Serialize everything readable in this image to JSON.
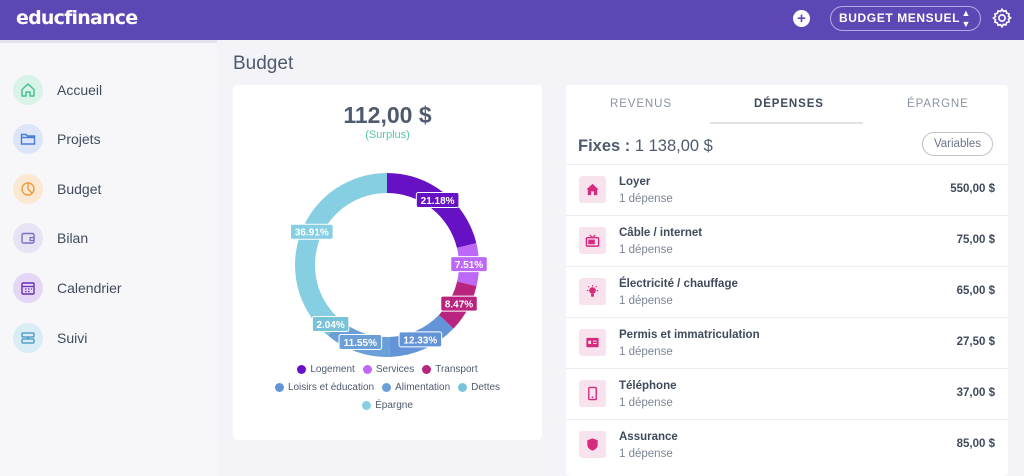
{
  "app": {
    "logo": "educfinance"
  },
  "topbar": {
    "add_label": "+",
    "budget_select": "BUDGET MENSUEL"
  },
  "sidebar": {
    "items": [
      {
        "label": "Accueil",
        "icon": "home-icon"
      },
      {
        "label": "Projets",
        "icon": "folder-icon"
      },
      {
        "label": "Budget",
        "icon": "pie-chart-icon"
      },
      {
        "label": "Bilan",
        "icon": "wallet-icon"
      },
      {
        "label": "Calendrier",
        "icon": "calendar-icon"
      },
      {
        "label": "Suivi",
        "icon": "tracking-icon"
      }
    ]
  },
  "page": {
    "title": "Budget"
  },
  "summary": {
    "amount": "112,00 $",
    "status": "(Surplus)"
  },
  "chart_data": {
    "type": "pie",
    "categories": [
      "Logement",
      "Services",
      "Transport",
      "Loisirs et éducation",
      "Alimentation",
      "Dettes",
      "Épargne"
    ],
    "values": [
      21.18,
      7.51,
      8.47,
      12.33,
      11.55,
      2.04,
      36.91
    ],
    "labels": [
      "21.18%",
      "7.51%",
      "8.47%",
      "12.33%",
      "11.55%",
      "2.04%",
      "36.91%"
    ],
    "colors": [
      "#6612c4",
      "#bd68f6",
      "#b8247e",
      "#6394d7",
      "#6b9fd8",
      "#79c3d9",
      "#86cfe2"
    ],
    "legend": "bottom"
  },
  "tabs": [
    {
      "label": "REVENUS",
      "active": false
    },
    {
      "label": "DÉPENSES",
      "active": true
    },
    {
      "label": "ÉPARGNE",
      "active": false
    }
  ],
  "fixes": {
    "label": "Fixes :",
    "amount": "1 138,00 $"
  },
  "variables_button": "Variables",
  "expenses": [
    {
      "name": "Loyer",
      "count": "1 dépense",
      "amount": "550,00 $",
      "icon": "house-icon"
    },
    {
      "name": "Câble / internet",
      "count": "1 dépense",
      "amount": "75,00 $",
      "icon": "tv-icon"
    },
    {
      "name": "Électricité / chauffage",
      "count": "1 dépense",
      "amount": "65,00 $",
      "icon": "lightbulb-icon"
    },
    {
      "name": "Permis et immatriculation",
      "count": "1 dépense",
      "amount": "27,50 $",
      "icon": "id-card-icon"
    },
    {
      "name": "Téléphone",
      "count": "1 dépense",
      "amount": "37,00 $",
      "icon": "phone-icon"
    },
    {
      "name": "Assurance",
      "count": "1 dépense",
      "amount": "85,00 $",
      "icon": "shield-icon"
    }
  ]
}
